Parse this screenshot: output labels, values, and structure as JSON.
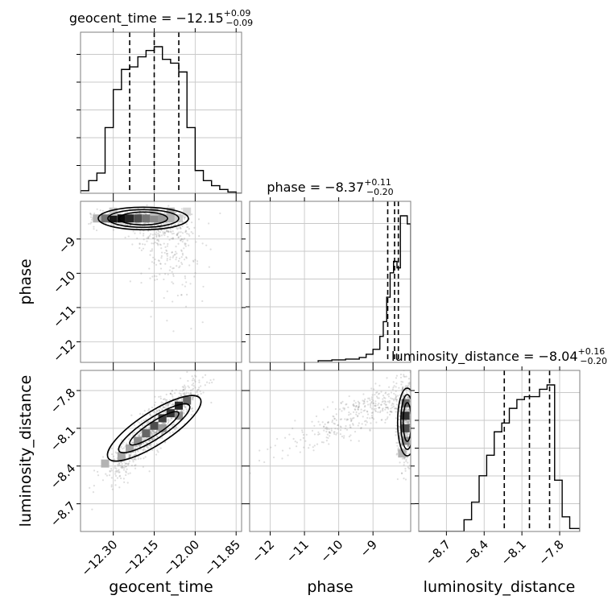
{
  "chart_data": {
    "type": "corner",
    "parameters": [
      {
        "key": "geocent_time",
        "axis_label": "geocent_time",
        "title_main": "geocent_time = −12.15",
        "title_sup": "+0.09",
        "title_sub": "−0.09",
        "range": [
          -12.42,
          -11.83
        ],
        "ticks": [
          -12.3,
          -12.15,
          -12.0,
          -11.85
        ],
        "tick_labels": [
          "−12.30",
          "−12.15",
          "−12.00",
          "−11.85"
        ],
        "quantiles": [
          -12.24,
          -12.15,
          -12.06
        ],
        "hist": {
          "edges": [
            -12.42,
            -12.39,
            -12.36,
            -12.33,
            -12.3,
            -12.27,
            -12.24,
            -12.21,
            -12.18,
            -12.15,
            -12.12,
            -12.09,
            -12.06,
            -12.03,
            -12.0,
            -11.97,
            -11.94,
            -11.91,
            -11.88,
            -11.85,
            -11.83
          ],
          "counts": [
            0.02,
            0.1,
            0.16,
            0.52,
            0.82,
            0.98,
            1.0,
            1.08,
            1.13,
            1.16,
            1.06,
            1.03,
            0.96,
            0.52,
            0.18,
            0.1,
            0.06,
            0.03,
            0.01,
            0.0
          ]
        }
      },
      {
        "key": "phase",
        "axis_label": "phase",
        "title_main": "phase = −8.37",
        "title_sup": "+0.11",
        "title_sub": "−0.20",
        "range": [
          -12.6,
          -7.9
        ],
        "ticks": [
          -12,
          -11,
          -10,
          -9
        ],
        "tick_labels": [
          "−12",
          "−11",
          "−10",
          "−9"
        ],
        "quantiles": [
          -8.57,
          -8.37,
          -8.26
        ],
        "hist": {
          "edges": [
            -10.6,
            -10.2,
            -9.8,
            -9.4,
            -9.2,
            -9.0,
            -8.8,
            -8.7,
            -8.6,
            -8.5,
            -8.4,
            -8.3,
            -8.2,
            -8.1,
            -8.0,
            -7.9
          ],
          "counts": [
            0.01,
            0.015,
            0.02,
            0.03,
            0.05,
            0.08,
            0.16,
            0.25,
            0.4,
            0.55,
            0.62,
            0.58,
            0.9,
            0.9,
            0.85
          ]
        }
      },
      {
        "key": "luminosity_distance",
        "axis_label": "luminosity_distance",
        "title_main": "luminosity_distance = −8.04",
        "title_sup": "+0.16",
        "title_sub": "−0.20",
        "range": [
          -8.92,
          -7.64
        ],
        "ticks": [
          -8.7,
          -8.4,
          -8.1,
          -7.8
        ],
        "tick_labels": [
          "−8.7",
          "−8.4",
          "−8.1",
          "−7.8"
        ],
        "quantiles": [
          -8.24,
          -8.04,
          -7.88
        ],
        "hist": {
          "edges": [
            -8.92,
            -8.86,
            -8.8,
            -8.74,
            -8.68,
            -8.62,
            -8.56,
            -8.5,
            -8.44,
            -8.38,
            -8.32,
            -8.26,
            -8.2,
            -8.14,
            -8.08,
            -8.02,
            -7.96,
            -7.9,
            -7.84,
            -7.78,
            -7.72,
            -7.64
          ],
          "counts": [
            0.0,
            0.0,
            0.0,
            0.0,
            0.0,
            0.0,
            0.08,
            0.2,
            0.38,
            0.52,
            0.68,
            0.74,
            0.84,
            0.9,
            0.92,
            0.92,
            0.97,
            1.0,
            0.35,
            0.1,
            0.02
          ]
        }
      }
    ],
    "pairs": [
      {
        "x": "geocent_time",
        "y": "phase",
        "peak": [
          -12.19,
          -8.4
        ],
        "density_cells": [
          [
            -12.36,
            -8.4,
            0.3
          ],
          [
            -12.33,
            -8.4,
            0.55
          ],
          [
            -12.3,
            -8.4,
            0.9
          ],
          [
            -12.27,
            -8.4,
            0.95
          ],
          [
            -12.24,
            -8.4,
            0.85
          ],
          [
            -12.21,
            -8.4,
            0.7
          ],
          [
            -12.18,
            -8.4,
            0.55
          ],
          [
            -12.15,
            -8.4,
            0.45
          ],
          [
            -12.12,
            -8.4,
            0.4
          ],
          [
            -12.09,
            -8.4,
            0.3
          ],
          [
            -12.06,
            -8.4,
            0.2
          ],
          [
            -12.3,
            -8.2,
            0.2
          ],
          [
            -12.15,
            -8.2,
            0.25
          ],
          [
            -12.09,
            -8.2,
            0.3
          ],
          [
            -12.03,
            -8.2,
            0.15
          ]
        ]
      },
      {
        "x": "geocent_time",
        "y": "luminosity_distance",
        "peak": [
          -12.08,
          -7.92
        ],
        "density_cells": [
          [
            -12.33,
            -8.38,
            0.3
          ],
          [
            -12.27,
            -8.32,
            0.35
          ],
          [
            -12.21,
            -8.2,
            0.45
          ],
          [
            -12.18,
            -8.14,
            0.6
          ],
          [
            -12.15,
            -8.08,
            0.7
          ],
          [
            -12.12,
            -8.02,
            0.75
          ],
          [
            -12.09,
            -7.98,
            0.8
          ],
          [
            -12.06,
            -7.92,
            0.85
          ],
          [
            -12.03,
            -7.88,
            0.6
          ],
          [
            -12.12,
            -8.1,
            0.4
          ],
          [
            -12.06,
            -8.0,
            0.45
          ],
          [
            -12.24,
            -8.26,
            0.35
          ]
        ]
      },
      {
        "x": "phase",
        "y": "luminosity_distance",
        "peak": [
          -8.0,
          -7.95
        ],
        "density_cells": [
          [
            -8.05,
            -7.9,
            0.6
          ],
          [
            -8.05,
            -8.0,
            0.8
          ],
          [
            -8.05,
            -8.1,
            0.7
          ],
          [
            -8.05,
            -8.2,
            0.45
          ],
          [
            -8.15,
            -8.3,
            0.3
          ]
        ]
      }
    ]
  }
}
